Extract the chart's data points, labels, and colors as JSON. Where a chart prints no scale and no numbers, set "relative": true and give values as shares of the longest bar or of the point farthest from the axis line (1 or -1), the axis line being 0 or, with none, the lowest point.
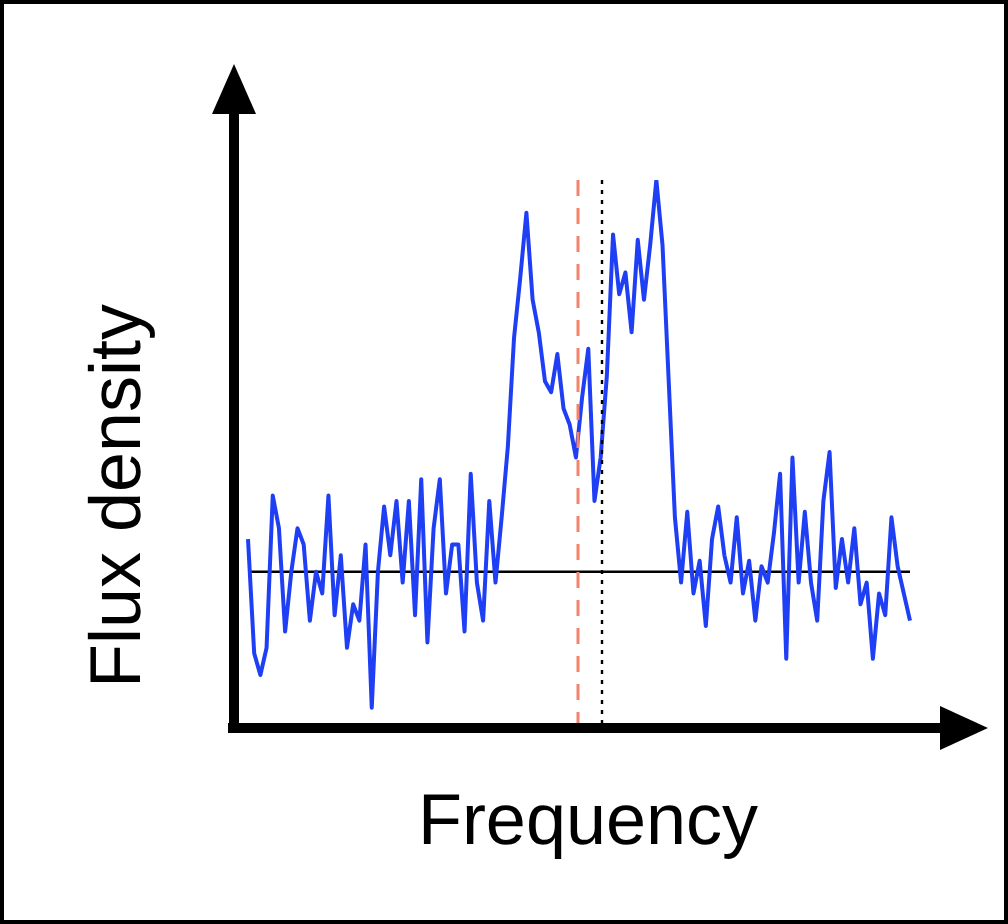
{
  "chart_data": {
    "type": "line",
    "relative": true,
    "xlabel": "Frequency",
    "ylabel": "Flux density",
    "grid": false,
    "legend": false,
    "marker": "none",
    "line_style": "solid",
    "categories": [
      null,
      null,
      null,
      null,
      null,
      null,
      null,
      null,
      null,
      null,
      null,
      null,
      null,
      null,
      null,
      null,
      null,
      null,
      null,
      null,
      null,
      null,
      null,
      null,
      null,
      null,
      null,
      null,
      null,
      null,
      null,
      null,
      null,
      null,
      null,
      null,
      null,
      null,
      null,
      null,
      null,
      null,
      null,
      null,
      null,
      null,
      null,
      null,
      null,
      null,
      null,
      null,
      null,
      null,
      null,
      null,
      null,
      null,
      null,
      null,
      null,
      null,
      null,
      null,
      null,
      null,
      null,
      null,
      null,
      null,
      null,
      null,
      null,
      null,
      null,
      null,
      null,
      null,
      null,
      null,
      null,
      null,
      null,
      null,
      null,
      null,
      null,
      null,
      null,
      null,
      null,
      null,
      null,
      null,
      null,
      null,
      null,
      null,
      null,
      null,
      null,
      null,
      null,
      null,
      null,
      null,
      null,
      null
    ],
    "series": [
      {
        "color": "#1f3ff5",
        "values": [
          0.34,
          0.13,
          0.09,
          0.14,
          0.42,
          0.36,
          0.17,
          0.28,
          0.36,
          0.33,
          0.19,
          0.28,
          0.24,
          0.42,
          0.2,
          0.31,
          0.14,
          0.22,
          0.19,
          0.33,
          0.03,
          0.28,
          0.4,
          0.31,
          0.41,
          0.26,
          0.41,
          0.2,
          0.45,
          0.15,
          0.36,
          0.45,
          0.24,
          0.33,
          0.33,
          0.17,
          0.46,
          0.26,
          0.19,
          0.41,
          0.26,
          0.38,
          0.51,
          0.71,
          0.82,
          0.94,
          0.78,
          0.72,
          0.63,
          0.61,
          0.68,
          0.58,
          0.55,
          0.49,
          0.6,
          0.69,
          0.41,
          0.49,
          0.64,
          0.9,
          0.79,
          0.83,
          0.72,
          0.89,
          0.78,
          0.88,
          1,
          0.88,
          0.63,
          0.38,
          0.26,
          0.39,
          0.24,
          0.3,
          0.18,
          0.34,
          0.4,
          0.31,
          0.26,
          0.38,
          0.24,
          0.3,
          0.19,
          0.29,
          0.26,
          0.35,
          0.46,
          0.12,
          0.49,
          0.26,
          0.39,
          0.26,
          0.19,
          0.41,
          0.5,
          0.25,
          0.34,
          0.26,
          0.36,
          0.22,
          0.26,
          0.12,
          0.24,
          0.2,
          0.38,
          0.29,
          0.24,
          0.19
        ]
      }
    ],
    "ref_lines": [
      {
        "axis": "y",
        "value": 0.28,
        "color": "#000000",
        "line_style": "solid"
      }
    ]
  }
}
